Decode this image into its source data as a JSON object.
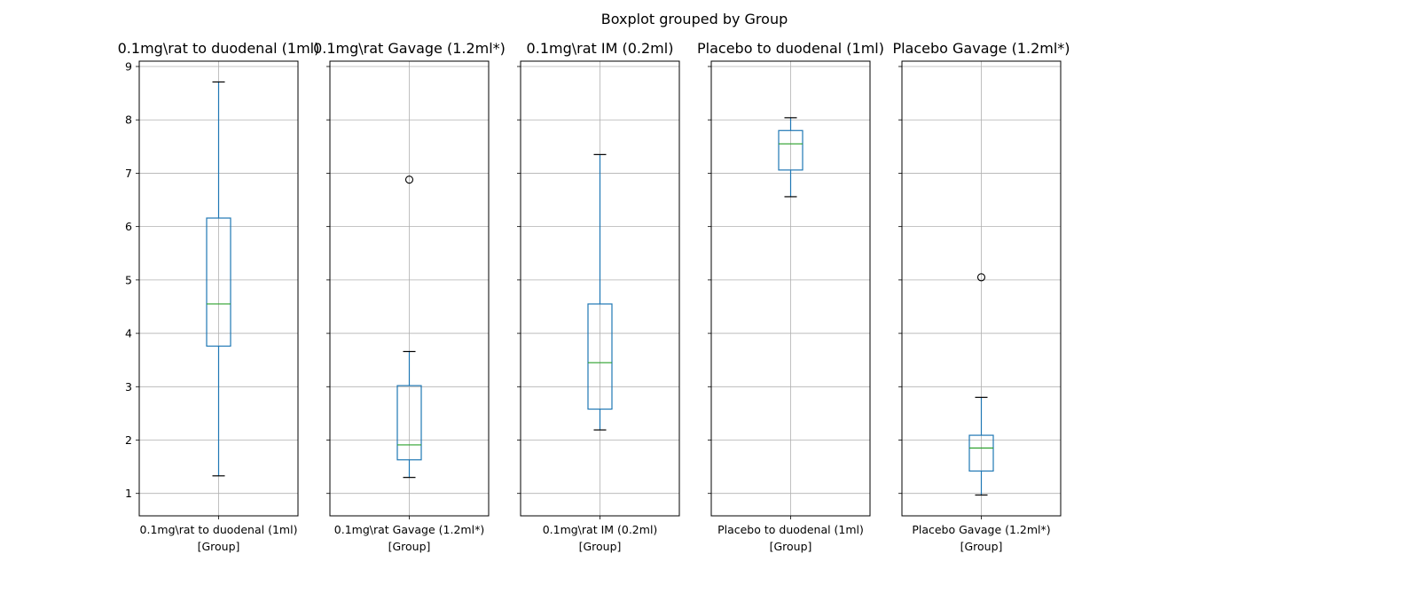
{
  "chart_data": {
    "type": "boxplot",
    "title": "Boxplot grouped by Group",
    "ylim": [
      0.58,
      9.1
    ],
    "yticks": [
      1,
      2,
      3,
      4,
      5,
      6,
      7,
      8,
      9
    ],
    "grid": true,
    "sharey": true,
    "panels": [
      {
        "title": "0.1mg\\rat  to duodenal (1ml)",
        "xtick": "0.1mg\\rat  to duodenal (1ml)",
        "xlabel": "[Group]",
        "whisker_low": 1.33,
        "q1": 3.76,
        "median": 4.55,
        "q3": 6.16,
        "whisker_high": 8.71,
        "outliers": []
      },
      {
        "title": "0.1mg\\rat Gavage (1.2ml*)",
        "xtick": "0.1mg\\rat Gavage (1.2ml*)",
        "xlabel": "[Group]",
        "whisker_low": 1.3,
        "q1": 1.63,
        "median": 1.91,
        "q3": 3.02,
        "whisker_high": 3.66,
        "outliers": [
          6.88
        ]
      },
      {
        "title": "0.1mg\\rat IM (0.2ml)",
        "xtick": "0.1mg\\rat IM (0.2ml)",
        "xlabel": "[Group]",
        "whisker_low": 2.19,
        "q1": 2.58,
        "median": 3.45,
        "q3": 4.55,
        "whisker_high": 7.35,
        "outliers": []
      },
      {
        "title": "Placebo  to duodenal (1ml)",
        "xtick": "Placebo  to duodenal (1ml)",
        "xlabel": "[Group]",
        "whisker_low": 6.56,
        "q1": 7.06,
        "median": 7.55,
        "q3": 7.8,
        "whisker_high": 8.04,
        "outliers": []
      },
      {
        "title": "Placebo Gavage (1.2ml*)",
        "xtick": "Placebo Gavage (1.2ml*)",
        "xlabel": "[Group]",
        "whisker_low": 0.97,
        "q1": 1.42,
        "median": 1.85,
        "q3": 2.09,
        "whisker_high": 2.8,
        "outliers": [
          5.05
        ]
      }
    ],
    "colors": {
      "box": "#1f77b4",
      "median": "#2ca02c",
      "cap": "#000000",
      "grid": "#b0b0b0",
      "outlier": "#000000"
    }
  }
}
